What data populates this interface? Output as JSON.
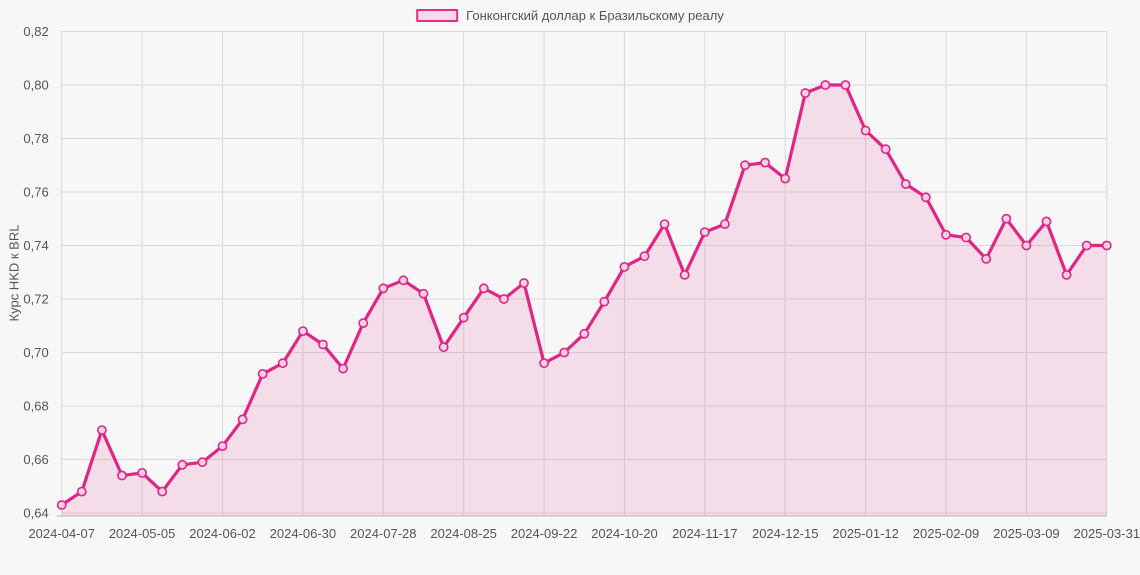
{
  "legend": {
    "label": "Гонконгский доллар к Бразильскому реалу"
  },
  "y_axis": {
    "title": "Курс HKD к BRL"
  },
  "colors": {
    "line": "#e02585",
    "area": "rgba(224,37,133,0.13)",
    "marker_fill": "#f6d0e5",
    "grid": "#d9d9dd",
    "axis": "#c6c6ca",
    "text": "#555555",
    "legend_swatch_border": "#e52b8d",
    "legend_swatch_fill": "#f7d9ea"
  },
  "chart_data": {
    "type": "area",
    "title": "",
    "series_name": "Гонконгский доллар к Бразильскому реалу",
    "xlabel": "",
    "ylabel": "Курс HKD к BRL",
    "ylim": [
      0.64,
      0.82
    ],
    "grid": true,
    "legend_position": "top",
    "x": [
      "2024-04-07",
      "2024-04-14",
      "2024-04-21",
      "2024-04-28",
      "2024-05-05",
      "2024-05-12",
      "2024-05-19",
      "2024-05-26",
      "2024-06-02",
      "2024-06-09",
      "2024-06-16",
      "2024-06-23",
      "2024-06-30",
      "2024-07-07",
      "2024-07-14",
      "2024-07-21",
      "2024-07-28",
      "2024-08-04",
      "2024-08-11",
      "2024-08-18",
      "2024-08-25",
      "2024-09-01",
      "2024-09-08",
      "2024-09-15",
      "2024-09-22",
      "2024-09-29",
      "2024-10-06",
      "2024-10-13",
      "2024-10-20",
      "2024-10-27",
      "2024-11-03",
      "2024-11-10",
      "2024-11-17",
      "2024-11-24",
      "2024-12-01",
      "2024-12-08",
      "2024-12-15",
      "2024-12-22",
      "2024-12-29",
      "2025-01-05",
      "2025-01-12",
      "2025-01-19",
      "2025-01-26",
      "2025-02-02",
      "2025-02-09",
      "2025-02-16",
      "2025-02-23",
      "2025-03-02",
      "2025-03-09",
      "2025-03-16",
      "2025-03-23",
      "2025-03-30",
      "2025-03-31"
    ],
    "values": [
      0.643,
      0.648,
      0.671,
      0.654,
      0.655,
      0.648,
      0.658,
      0.659,
      0.665,
      0.675,
      0.692,
      0.696,
      0.708,
      0.703,
      0.694,
      0.711,
      0.724,
      0.727,
      0.722,
      0.702,
      0.713,
      0.724,
      0.72,
      0.726,
      0.696,
      0.7,
      0.707,
      0.719,
      0.732,
      0.736,
      0.748,
      0.729,
      0.745,
      0.748,
      0.77,
      0.771,
      0.765,
      0.797,
      0.8,
      0.8,
      0.783,
      0.776,
      0.763,
      0.758,
      0.744,
      0.743,
      0.735,
      0.75,
      0.74,
      0.749,
      0.729,
      0.74,
      0.74
    ],
    "y_ticks": [
      {
        "label": "0,82",
        "value": 0.82
      },
      {
        "label": "0,80",
        "value": 0.8
      },
      {
        "label": "0,78",
        "value": 0.78
      },
      {
        "label": "0,76",
        "value": 0.76
      },
      {
        "label": "0,74",
        "value": 0.74
      },
      {
        "label": "0,72",
        "value": 0.72
      },
      {
        "label": "0,70",
        "value": 0.7
      },
      {
        "label": "0,68",
        "value": 0.68
      },
      {
        "label": "0,66",
        "value": 0.66
      },
      {
        "label": "0,64",
        "value": 0.64
      }
    ],
    "x_tick_indices": [
      0,
      4,
      8,
      12,
      16,
      20,
      24,
      28,
      32,
      36,
      40,
      44,
      48,
      52
    ]
  }
}
